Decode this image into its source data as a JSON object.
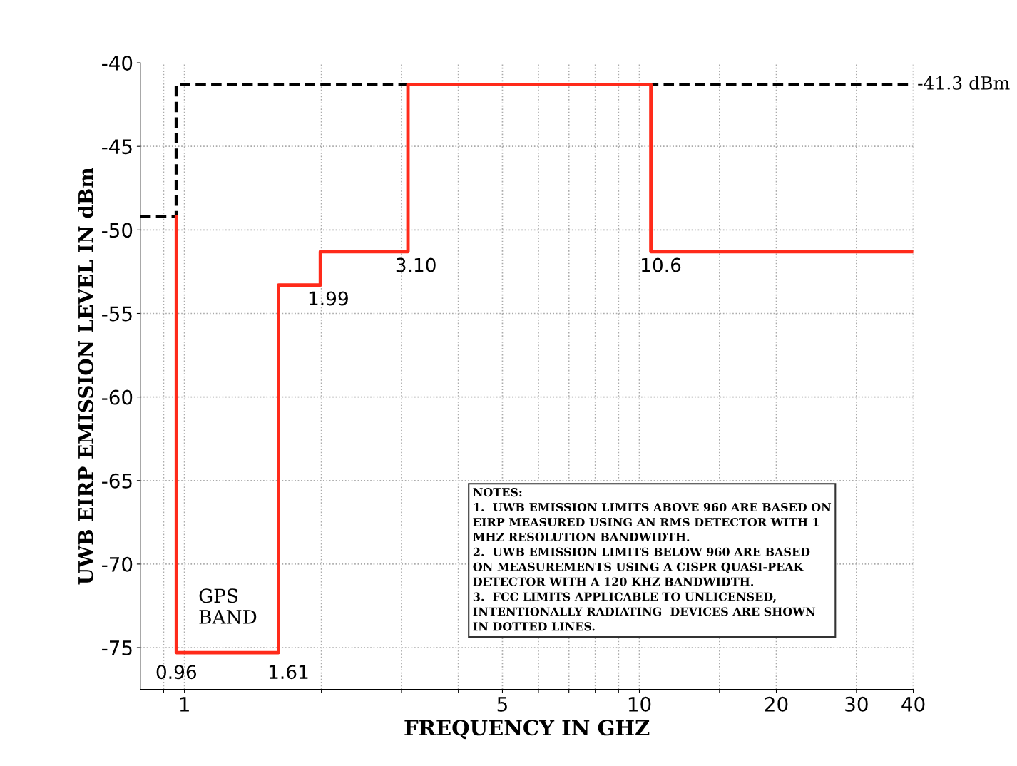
{
  "chart_data": {
    "type": "step",
    "xlabel": "FREQUENCY IN GHZ",
    "ylabel": "UWB EIRP EMISSION LEVEL IN dBm",
    "log": "x",
    "xlim": [
      0.8,
      40
    ],
    "ylim": [
      -77.5,
      -40
    ],
    "xticks": [
      {
        "value": 0.9,
        "label": null
      },
      1,
      {
        "value": 2,
        "label": null
      },
      {
        "value": 3,
        "label": null
      },
      {
        "value": 4,
        "label": null
      },
      5,
      {
        "value": 6,
        "label": null
      },
      {
        "value": 7,
        "label": null
      },
      {
        "value": 8,
        "label": null
      },
      {
        "value": 9,
        "label": null
      },
      10,
      {
        "value": 15,
        "label": null
      },
      20,
      30,
      40
    ],
    "yticks": [
      -75,
      -70,
      -65,
      -60,
      -55,
      -50,
      -45,
      -40
    ],
    "grid": true,
    "series": [
      {
        "color": "#000000",
        "line_style": "dashed",
        "x": [
          0.8,
          0.96,
          40
        ],
        "values": [
          -49.2,
          -41.3,
          -41.3
        ]
      },
      {
        "color": "#ff2a1a",
        "line_style": "solid",
        "x": [
          0.96,
          0.96,
          1.61,
          1.99,
          3.1,
          10.6,
          40
        ],
        "values": [
          -49.2,
          -75.3,
          -53.3,
          -51.3,
          -41.3,
          -51.3,
          -51.3
        ]
      }
    ],
    "annotations": [
      {
        "text": "0.96",
        "x": 0.96,
        "y": -75.3
      },
      {
        "text": "1.61",
        "x": 1.61,
        "y": -75.3
      },
      {
        "text": "1.99",
        "x": 1.99,
        "y": -53.3
      },
      {
        "text": "3.10",
        "x": 3.1,
        "y": -51.3
      },
      {
        "text": "10.6",
        "x": 10.6,
        "y": -51.3
      },
      {
        "text": "-41.3 dBm",
        "x": 40,
        "y": -41.3
      },
      "GPS\nBAND",
      "NOTES:\n1.  UWB EMISSION LIMITS ABOVE 960 ARE BASED ON\nEIRP MEASURED USING AN RMS DETECTOR WITH 1\nMHZ RESOLUTION BANDWIDTH.\n2.  UWB EMISSION LIMITS BELOW 960 ARE BASED\nON MEASUREMENTS USING A CISPR QUASI-PEAK\nDETECTOR WITH A 120 KHZ BANDWIDTH.\n3.  FCC LIMITS APPLICABLE TO UNLICENSED,\nINTENTIONALLY RADIATING  DEVICES ARE SHOWN\nIN DOTTED LINES."
    ]
  }
}
